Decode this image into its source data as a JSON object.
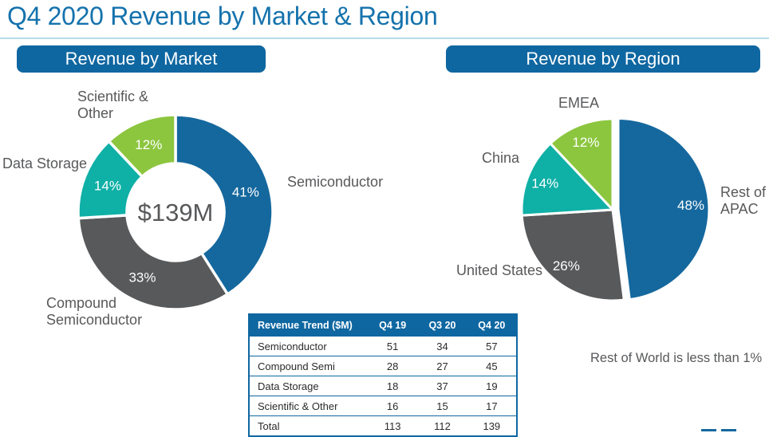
{
  "title": "Q4 2020 Revenue by Market & Region",
  "sections": {
    "market": {
      "header": "Revenue by Market"
    },
    "region": {
      "header": "Revenue by Region"
    }
  },
  "colors": {
    "blue": "#15689E",
    "gray": "#58595B",
    "teal": "#0FB0A6",
    "green": "#8CC63F",
    "header_bar": "#0F67A1",
    "title_text": "#1472AC"
  },
  "chart_data": [
    {
      "type": "pie",
      "name": "revenue-by-market",
      "title": "Revenue by Market",
      "donut": true,
      "center_label": "$139M",
      "unit": "%",
      "slices": [
        {
          "label": "Semiconductor",
          "value": 41,
          "color": "#15689E"
        },
        {
          "label": "Compound Semiconductor",
          "value": 33,
          "color": "#58595B"
        },
        {
          "label": "Data Storage",
          "value": 14,
          "color": "#0FB0A6"
        },
        {
          "label": "Scientific & Other",
          "value": 12,
          "color": "#8CC63F"
        }
      ]
    },
    {
      "type": "pie",
      "name": "revenue-by-region",
      "title": "Revenue by Region",
      "donut": false,
      "unit": "%",
      "slices": [
        {
          "label": "Rest of APAC",
          "value": 48,
          "color": "#15689E",
          "exploded": true
        },
        {
          "label": "United States",
          "value": 26,
          "color": "#58595B"
        },
        {
          "label": "China",
          "value": 14,
          "color": "#0FB0A6"
        },
        {
          "label": "EMEA",
          "value": 12,
          "color": "#8CC63F"
        }
      ],
      "footnote": "Rest of World is less than 1%"
    }
  ],
  "labels": {
    "market": {
      "scientific_line1": "Scientific &",
      "scientific_line2": "Other",
      "data_storage": "Data Storage",
      "semiconductor": "Semiconductor",
      "compound_line1": "Compound",
      "compound_line2": "Semiconductor",
      "center": "$139M"
    },
    "region": {
      "emea": "EMEA",
      "china": "China",
      "rest_line1": "Rest of",
      "rest_line2": "APAC",
      "united_states": "United States"
    },
    "footnote": "Rest of World is less than 1%"
  },
  "table": {
    "header": [
      "Revenue Trend ($M)",
      "Q4 19",
      "Q3 20",
      "Q4 20"
    ],
    "rows": [
      [
        "Semiconductor",
        "51",
        "34",
        "57"
      ],
      [
        "Compound Semi",
        "28",
        "27",
        "45"
      ],
      [
        "Data Storage",
        "18",
        "37",
        "19"
      ],
      [
        "Scientific & Other",
        "16",
        "15",
        "17"
      ],
      [
        "Total",
        "113",
        "112",
        "139"
      ]
    ]
  }
}
